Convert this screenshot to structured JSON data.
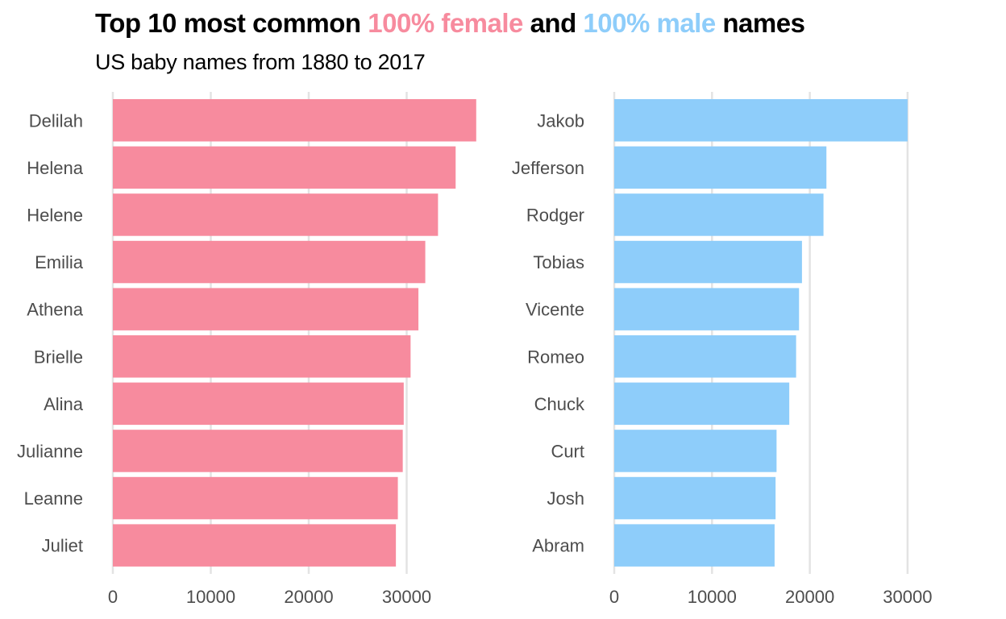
{
  "title": {
    "part1": "Top 10 most common ",
    "female_label": "100% female",
    "part2": " and ",
    "male_label": "100% male",
    "part3": " names"
  },
  "subtitle": "US baby names from 1880 to 2017",
  "colors": {
    "female": "#f78b9e",
    "male": "#8ecdfa",
    "grid": "#e3e3e3",
    "text": "#4d4d4d"
  },
  "chart_data": [
    {
      "type": "bar",
      "orientation": "horizontal",
      "categories": [
        "Delilah",
        "Helena",
        "Helene",
        "Emilia",
        "Athena",
        "Brielle",
        "Alina",
        "Julianne",
        "Leanne",
        "Juliet"
      ],
      "values": [
        37100,
        35000,
        33200,
        31900,
        31200,
        30400,
        29700,
        29600,
        29100,
        28900
      ],
      "xlim": [
        0,
        40000
      ],
      "x_ticks": [
        "0",
        "10000",
        "20000",
        "30000"
      ],
      "grid": true
    },
    {
      "type": "bar",
      "orientation": "horizontal",
      "categories": [
        "Jakob",
        "Jefferson",
        "Rodger",
        "Tobias",
        "Vicente",
        "Romeo",
        "Chuck",
        "Curt",
        "Josh",
        "Abram"
      ],
      "values": [
        30000,
        21700,
        21400,
        19200,
        18900,
        18600,
        17900,
        16600,
        16500,
        16400
      ],
      "xlim": [
        0,
        37000
      ],
      "x_ticks": [
        "0",
        "10000",
        "20000",
        "30000"
      ],
      "grid": true
    }
  ]
}
